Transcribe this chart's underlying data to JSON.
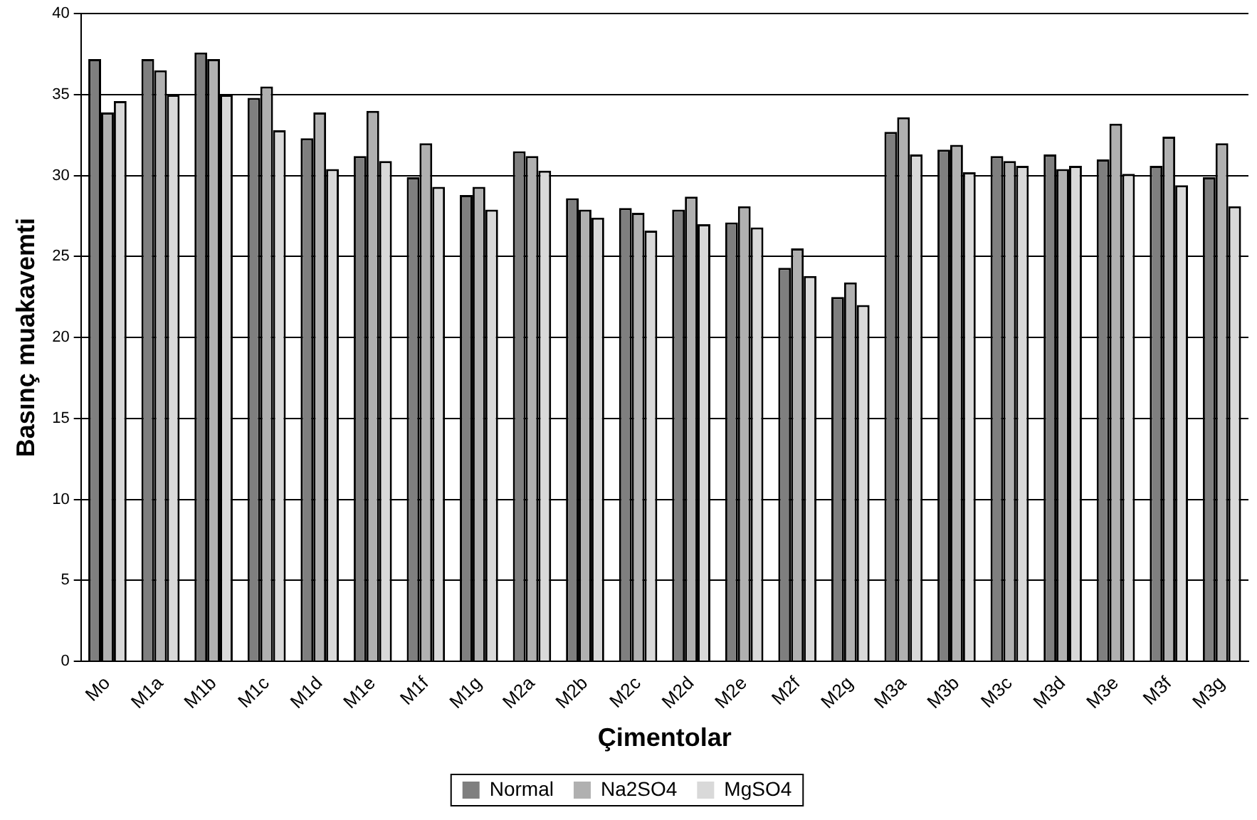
{
  "chart_data": {
    "type": "bar",
    "xlabel": "Çimentolar",
    "ylabel": "Basınç muakavemti",
    "categories": [
      "Mo",
      "M1a",
      "M1b",
      "M1c",
      "M1d",
      "M1e",
      "M1f",
      "M1g",
      "M2a",
      "M2b",
      "M2c",
      "M2d",
      "M2e",
      "M2f",
      "M2g",
      "M3a",
      "M3b",
      "M3c",
      "M3d",
      "M3e",
      "M3f",
      "M3g"
    ],
    "series": [
      {
        "name": "Normal",
        "color": "#7f7f7f",
        "values": [
          37.2,
          37.2,
          37.6,
          34.8,
          32.3,
          31.2,
          29.9,
          28.8,
          31.5,
          28.6,
          28.0,
          27.9,
          27.1,
          24.3,
          22.5,
          32.7,
          31.6,
          31.2,
          31.3,
          31.0,
          30.6,
          29.9
        ]
      },
      {
        "name": "Na2SO4",
        "color": "#b0b0b0",
        "values": [
          33.9,
          36.5,
          37.2,
          35.5,
          33.9,
          34.0,
          32.0,
          29.3,
          31.2,
          27.9,
          27.7,
          28.7,
          28.1,
          25.5,
          23.4,
          33.6,
          31.9,
          30.9,
          30.4,
          33.2,
          32.4,
          32.0
        ]
      },
      {
        "name": "MgSO4",
        "color": "#d9d9d9",
        "values": [
          34.6,
          35.0,
          35.0,
          32.8,
          30.4,
          30.9,
          29.3,
          27.9,
          30.3,
          27.4,
          26.6,
          27.0,
          26.8,
          23.8,
          22.0,
          31.3,
          30.2,
          30.6,
          30.6,
          30.1,
          29.4,
          28.1
        ]
      }
    ],
    "ylim": [
      0,
      40
    ],
    "yticks": [
      0,
      5,
      10,
      15,
      20,
      25,
      30,
      35,
      40
    ],
    "grid": "y",
    "legend": "bottom"
  }
}
